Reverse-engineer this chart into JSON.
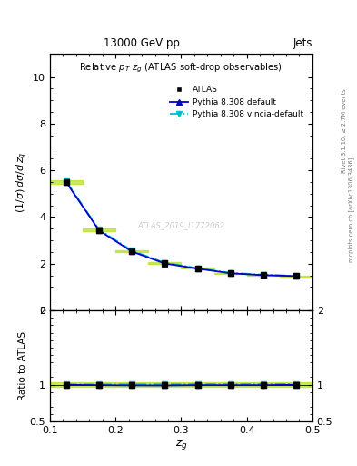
{
  "title_top": "13000 GeV pp",
  "title_right": "Jets",
  "plot_title": "Relative $p_T$ $z_g$ (ATLAS soft-drop observables)",
  "ylabel_main": "(1/σ) dσ/d z_g",
  "ylabel_ratio": "Ratio to ATLAS",
  "xlabel": "$z_g$",
  "right_label": "Rivet 3.1.10, ≥ 2.7M events",
  "right_label2": "mcplots.cern.ch [arXiv:1306.3436]",
  "watermark": "ATLAS_2019_I1772062",
  "xvals": [
    0.125,
    0.175,
    0.225,
    0.275,
    0.325,
    0.375,
    0.425,
    0.475
  ],
  "atlas_y": [
    5.5,
    3.45,
    2.55,
    2.03,
    1.8,
    1.6,
    1.52,
    1.47
  ],
  "atlas_yerr": [
    0.08,
    0.05,
    0.04,
    0.03,
    0.02,
    0.02,
    0.02,
    0.02
  ],
  "pythia_default_y": [
    5.48,
    3.42,
    2.52,
    2.01,
    1.79,
    1.59,
    1.51,
    1.47
  ],
  "pythia_vincia_y": [
    5.52,
    3.46,
    2.56,
    2.04,
    1.81,
    1.61,
    1.53,
    1.48
  ],
  "atlas_color": "#000000",
  "pythia_default_color": "#0000cc",
  "pythia_vincia_color": "#00bbcc",
  "band_color_main": "#aadd00",
  "band_alpha": 0.6,
  "ylim_main": [
    0,
    11
  ],
  "ylim_ratio": [
    0.5,
    2.0
  ],
  "xlim": [
    0.1,
    0.5
  ],
  "yticks_main": [
    0,
    2,
    4,
    6,
    8,
    10
  ],
  "yticks_ratio": [
    0.5,
    1.0,
    2.0
  ],
  "ratio_pythia_default": [
    0.997,
    0.993,
    0.99,
    0.989,
    0.993,
    0.993,
    0.993,
    0.998
  ],
  "ratio_pythia_vincia": [
    1.004,
    1.003,
    1.004,
    1.005,
    1.006,
    1.006,
    1.007,
    1.007
  ],
  "bg_color": "#ffffff"
}
